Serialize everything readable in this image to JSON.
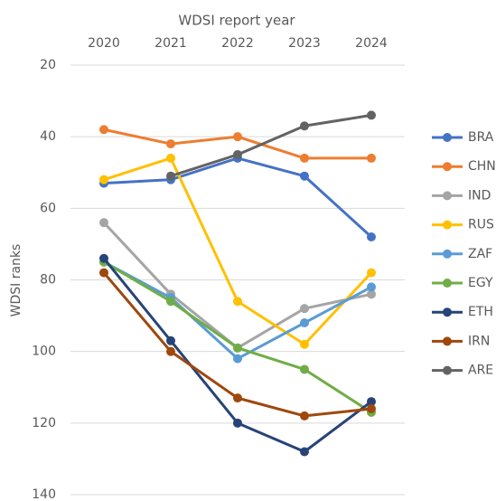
{
  "chart_data": {
    "type": "line",
    "x_axis_title": "WDSI report year",
    "y_axis_title": "WDSI ranks",
    "categories": [
      "2020",
      "2021",
      "2022",
      "2023",
      "2024"
    ],
    "ylim": [
      20,
      140
    ],
    "yticks": [
      20,
      40,
      60,
      80,
      100,
      120,
      140
    ],
    "y_reversed": true,
    "grid": true,
    "legend_position": "right",
    "series": [
      {
        "name": "BRA",
        "color": "#4472c4",
        "values": [
          53,
          52,
          46,
          51,
          68
        ]
      },
      {
        "name": "CHN",
        "color": "#ed7d31",
        "values": [
          38,
          42,
          40,
          46,
          46
        ]
      },
      {
        "name": "IND",
        "color": "#a5a5a5",
        "values": [
          64,
          84,
          99,
          88,
          84
        ]
      },
      {
        "name": "RUS",
        "color": "#ffc000",
        "values": [
          52,
          46,
          86,
          98,
          78
        ]
      },
      {
        "name": "ZAF",
        "color": "#5b9bd5",
        "values": [
          75,
          85,
          102,
          92,
          82
        ]
      },
      {
        "name": "EGY",
        "color": "#70ad47",
        "values": [
          75,
          86,
          99,
          105,
          117
        ]
      },
      {
        "name": "ETH",
        "color": "#264478",
        "values": [
          74,
          97,
          120,
          128,
          114
        ]
      },
      {
        "name": "IRN",
        "color": "#9e480e",
        "values": [
          78,
          100,
          113,
          118,
          116
        ]
      },
      {
        "name": "ARE",
        "color": "#636363",
        "values": [
          null,
          51,
          45,
          37,
          34
        ]
      }
    ]
  }
}
